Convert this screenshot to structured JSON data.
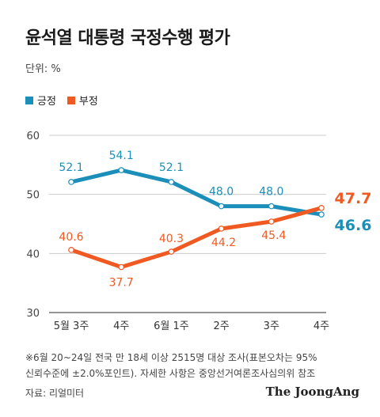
{
  "title": "윤석열 대통령 국정수행 평가",
  "unit_label": "단위: %",
  "legend": [
    {
      "name": "긍정",
      "color": "#1b8fb9"
    },
    {
      "name": "부정",
      "color": "#f05a22"
    }
  ],
  "chart_data": {
    "type": "line",
    "categories": [
      "5월 3주",
      "4주",
      "6월 1주",
      "2주",
      "3주",
      "4주"
    ],
    "series": [
      {
        "name": "긍정",
        "color": "#1b8fb9",
        "values": [
          52.1,
          54.1,
          52.1,
          48.0,
          48.0,
          46.6
        ],
        "labels": [
          "52.1",
          "54.1",
          "52.1",
          "48.0",
          "48.0",
          "46.6"
        ]
      },
      {
        "name": "부정",
        "color": "#f05a22",
        "values": [
          40.6,
          37.7,
          40.3,
          44.2,
          45.4,
          47.7
        ],
        "labels": [
          "40.6",
          "37.7",
          "40.3",
          "44.2",
          "45.4",
          "47.7"
        ]
      }
    ],
    "ylim": [
      30,
      60
    ],
    "yticks": [
      30,
      40,
      50,
      60
    ],
    "grid": true,
    "legend_position": "top-left"
  },
  "note_line1": "※6월 20~24일 전국 만 18세 이상 2515명 대상 조사(표본오차는 95%",
  "note_line2": "신뢰수준에 ±2.0%포인트). 자세한 사항은 중앙선거여론조사심의위 참조",
  "source": "자료: 리얼미터",
  "brand": "The JoongAng"
}
